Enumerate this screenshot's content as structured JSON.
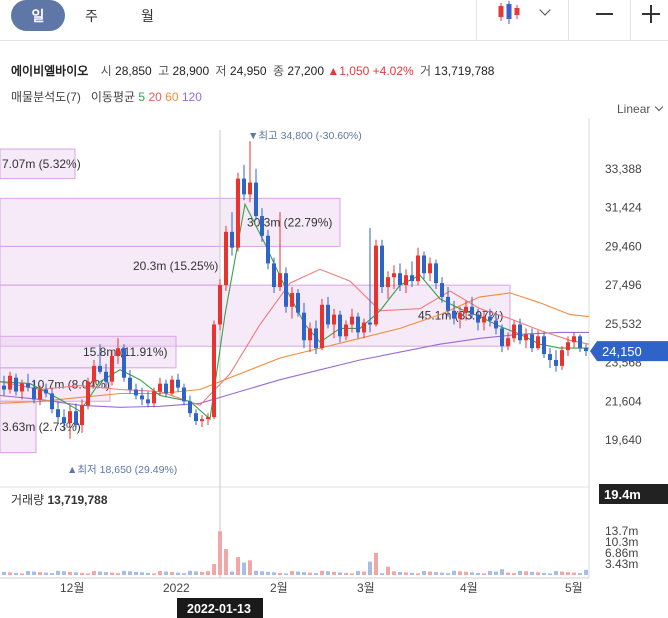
{
  "toolbar": {
    "periods": [
      "일",
      "주",
      "월"
    ],
    "active_period": "일"
  },
  "stock": {
    "name": "에이비엘바이오",
    "open_label": "시",
    "open": "28,850",
    "high_label": "고",
    "high": "28,900",
    "low_label": "저",
    "low": "24,950",
    "close_label": "종",
    "close": "27,200",
    "change_arrow": "▲",
    "change": "1,050",
    "change_pct": "+4.02%",
    "volume_label": "거",
    "volume": "13,719,788"
  },
  "indicators": {
    "volume_profile": "매물분석도(7)",
    "ma_label": "이동평균",
    "ma": [
      "5",
      "20",
      "60",
      "120"
    ]
  },
  "scale": "Linear",
  "chart_data": {
    "type": "candlestick",
    "y_ticks": [
      "33,388",
      "31,424",
      "29,460",
      "27,496",
      "25,532",
      "23,568",
      "21,604",
      "19,640"
    ],
    "y_tick_values": [
      33388,
      31424,
      29460,
      27496,
      25532,
      23568,
      21604,
      19640
    ],
    "ylim": [
      18400,
      36200
    ],
    "current_price": "24,150",
    "current_price_value": 24150,
    "x_ticks": [
      "12월",
      "2022",
      "2월",
      "3월",
      "4월",
      "5월"
    ],
    "crosshair_date": "2022-01-13",
    "high_annotation": "▼최고 34,800 (-30.60%)",
    "high_value": 34800,
    "low_annotation": "▲최저 18,650 (29.49%)",
    "low_value": 18650,
    "volume_profile": [
      {
        "label": "7.07m (5.32%)",
        "price_from": 32900,
        "price_to": 34400,
        "volume_m": 7.07
      },
      {
        "label": "30.3m (22.79%)",
        "price_from": 29460,
        "price_to": 31900,
        "volume_m": 30.3
      },
      {
        "label": "20.3m (15.25%)",
        "price_from": 27496,
        "price_to": 29460,
        "volume_m": 20.3
      },
      {
        "label": "45.1m (33.97%)",
        "price_from": 24400,
        "price_to": 27496,
        "volume_m": 45.1
      },
      {
        "label": "15.8m (11.91%)",
        "price_from": 23300,
        "price_to": 24900,
        "volume_m": 15.8
      },
      {
        "label": "10.7m (8.04%)",
        "price_from": 21604,
        "price_to": 23300,
        "volume_m": 10.7
      },
      {
        "label": "3.63m (2.73%)",
        "price_from": 19000,
        "price_to": 21604,
        "volume_m": 3.63
      }
    ],
    "volume": {
      "label": "거래량",
      "value": "13,719,788",
      "current_tag": "19.4m",
      "y_ticks": [
        "13.7m",
        "10.3m",
        "6.86m",
        "3.43m"
      ]
    }
  }
}
